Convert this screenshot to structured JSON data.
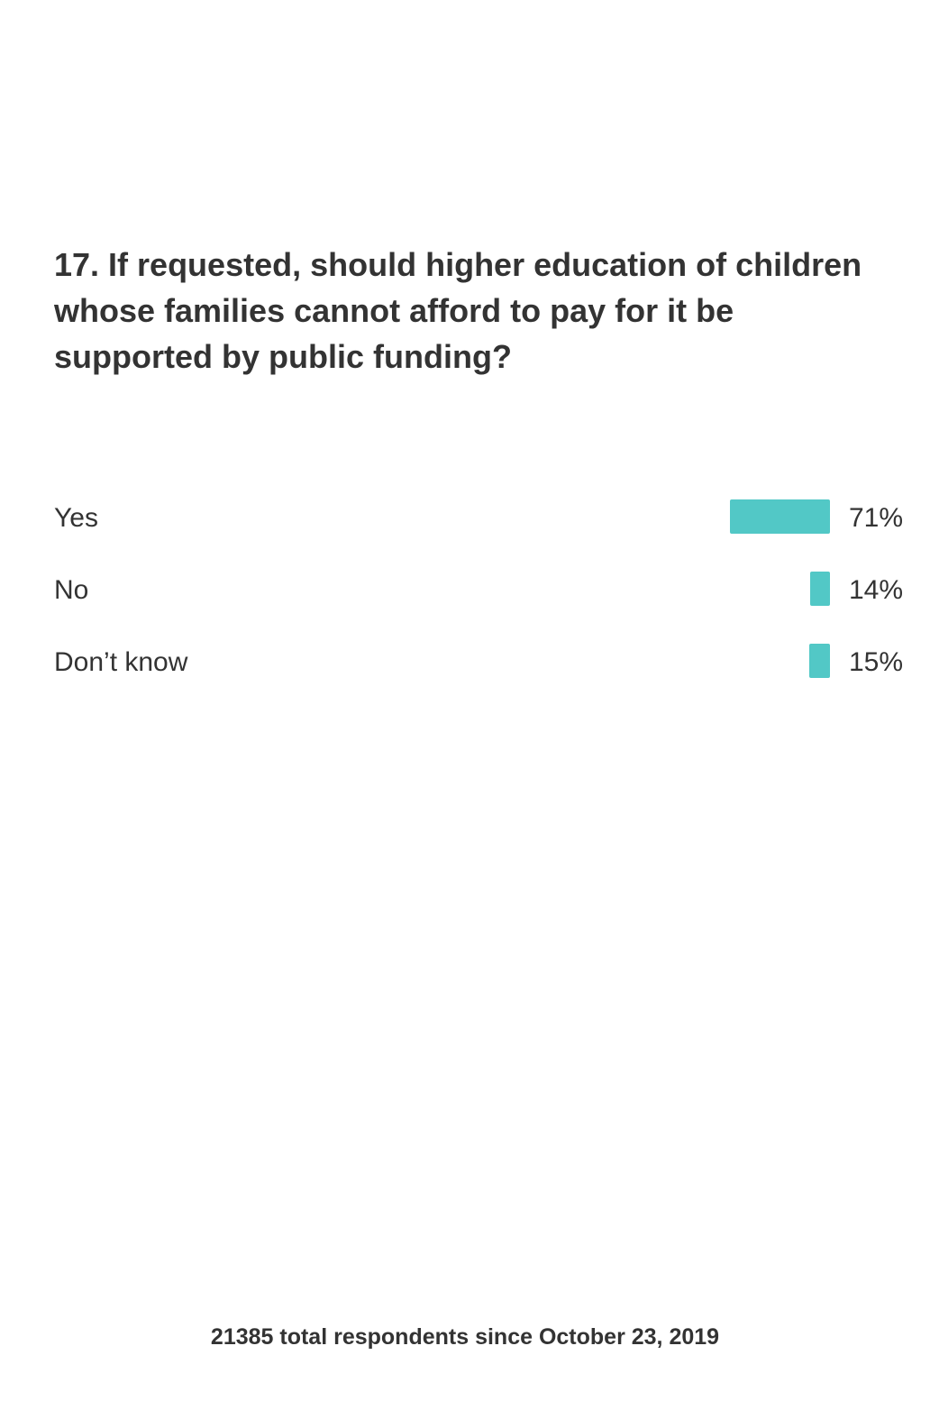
{
  "question": "17. If requested, should higher education of children whose families cannot afford to pay for it be supported by public funding?",
  "footer": "21385 total respondents since October 23, 2019",
  "colors": {
    "bar": "#52c8c6",
    "text": "#333333"
  },
  "chart_data": {
    "type": "bar",
    "orientation": "horizontal",
    "categories": [
      "Yes",
      "No",
      "Don’t know"
    ],
    "values": [
      71,
      14,
      15
    ],
    "value_labels": [
      "71%",
      "14%",
      "15%"
    ],
    "unit": "%"
  }
}
